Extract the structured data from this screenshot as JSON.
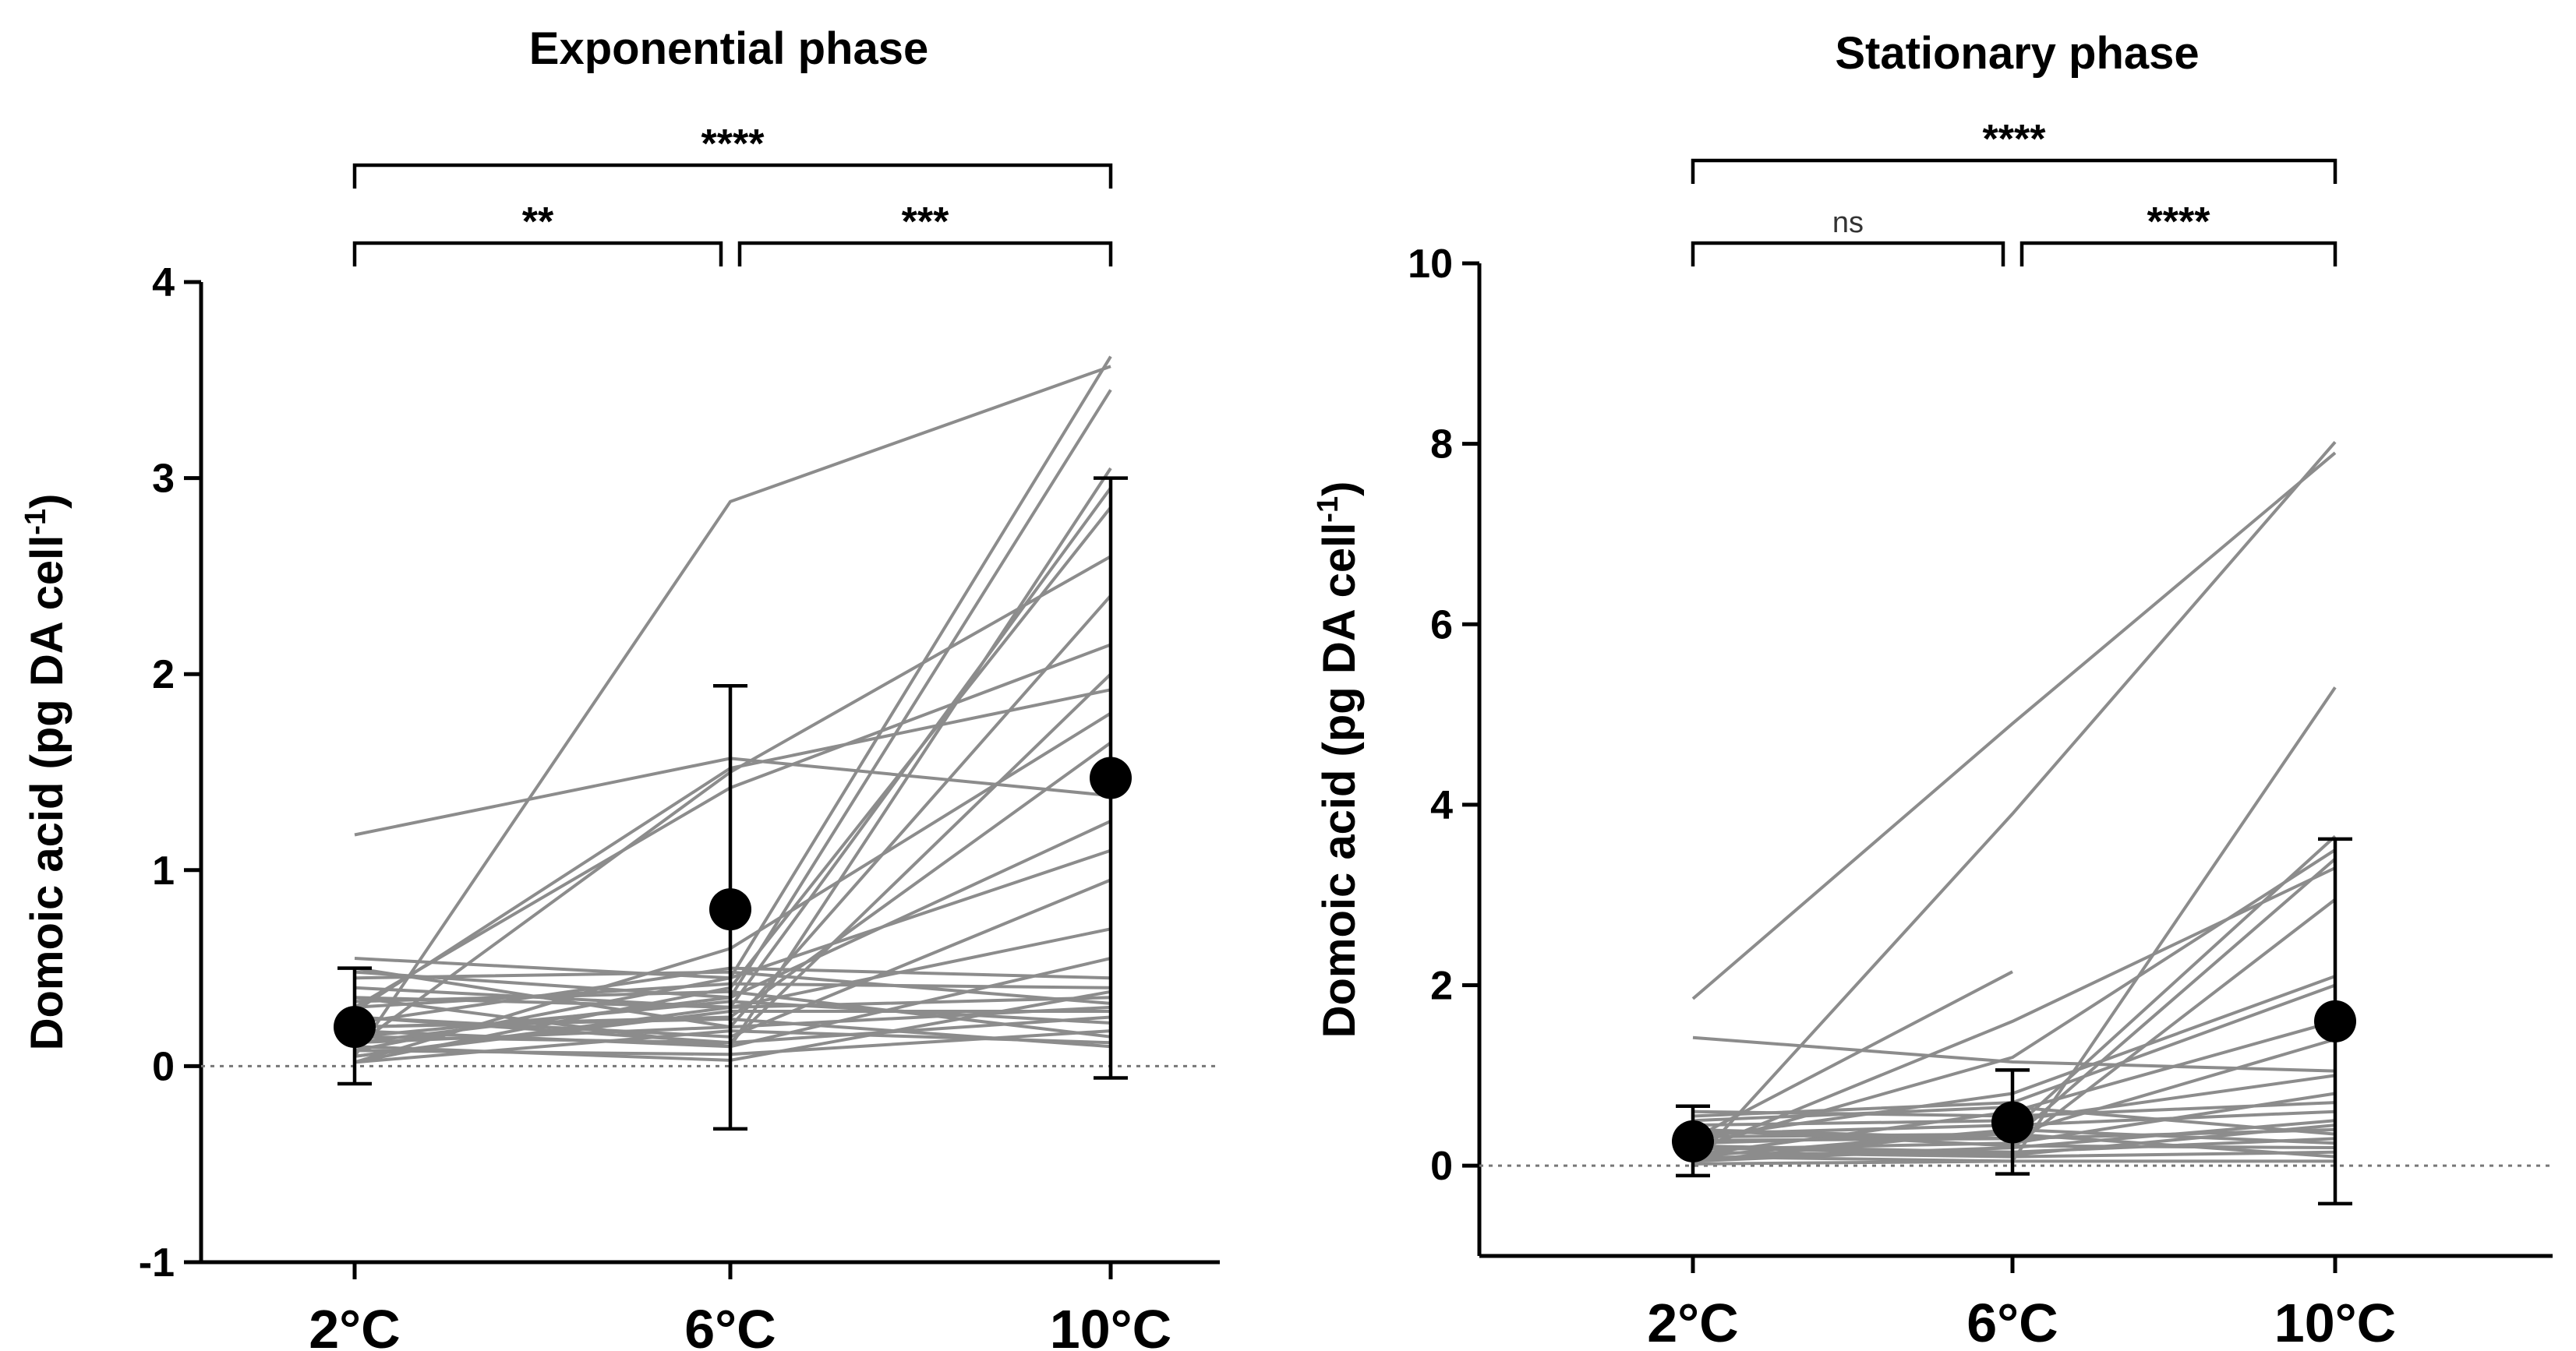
{
  "chart_data": [
    {
      "type": "line",
      "title": "Exponential phase",
      "xlabel": "",
      "ylabel": "Domoic acid (pg DA cell",
      "ylabel_sup": "-1",
      "ylabel_close": ")",
      "categories": [
        "2°C",
        "6°C",
        "10°C"
      ],
      "ylim": [
        -1,
        4
      ],
      "yticks": [
        -1,
        0,
        1,
        2,
        3,
        4
      ],
      "ytick_labels": [
        "-1",
        "0",
        "1",
        "2",
        "3",
        "4"
      ],
      "zero_line": true,
      "individual_series": [
        [
          1.18,
          1.57,
          1.38
        ],
        [
          0.05,
          2.88,
          3.57
        ],
        [
          0.55,
          0.45,
          3.62
        ],
        [
          0.48,
          0.35,
          3.45
        ],
        [
          0.35,
          0.1,
          3.05
        ],
        [
          0.05,
          0.3,
          2.95
        ],
        [
          0.1,
          1.5,
          2.6
        ],
        [
          0.02,
          0.4,
          2.85
        ],
        [
          0.5,
          0.2,
          2.4
        ],
        [
          0.3,
          1.42,
          2.15
        ],
        [
          0.15,
          0.12,
          2.0
        ],
        [
          0.28,
          1.52,
          1.92
        ],
        [
          0.02,
          0.6,
          1.8
        ],
        [
          0.2,
          0.25,
          1.65
        ],
        [
          0.12,
          0.35,
          1.25
        ],
        [
          0.08,
          0.45,
          1.1
        ],
        [
          0.25,
          0.15,
          0.95
        ],
        [
          0.35,
          0.3,
          0.7
        ],
        [
          0.18,
          0.1,
          0.55
        ],
        [
          0.22,
          0.5,
          0.45
        ],
        [
          0.3,
          0.42,
          0.4
        ],
        [
          0.4,
          0.3,
          0.35
        ],
        [
          0.12,
          0.2,
          0.3
        ],
        [
          0.05,
          0.28,
          0.28
        ],
        [
          0.25,
          0.12,
          0.25
        ],
        [
          0.15,
          0.33,
          0.22
        ],
        [
          0.08,
          0.06,
          0.18
        ],
        [
          0.33,
          0.38,
          0.15
        ],
        [
          0.02,
          0.18,
          0.12
        ],
        [
          0.2,
          0.24,
          0.1
        ],
        [
          0.1,
          0.03,
          0.38
        ],
        [
          0.45,
          0.48,
          0.32
        ]
      ],
      "means": [
        0.2,
        0.8,
        1.47
      ],
      "err_upper": [
        0.5,
        1.94,
        3.0
      ],
      "err_lower": [
        -0.09,
        -0.32,
        -0.06
      ],
      "brackets": [
        {
          "from": 0,
          "to": 2,
          "level": "top",
          "label": "****"
        },
        {
          "from": 0,
          "to": 1,
          "level": "low",
          "label": "**"
        },
        {
          "from": 1,
          "to": 2,
          "level": "low",
          "label": "***"
        }
      ]
    },
    {
      "type": "line",
      "title": "Stationary phase",
      "xlabel": "",
      "ylabel": "Domoic acid (pg DA cell",
      "ylabel_sup": "-1",
      "ylabel_close": ")",
      "categories": [
        "2°C",
        "6°C",
        "10°C"
      ],
      "ylim": [
        -1,
        10
      ],
      "yticks": [
        0,
        2,
        4,
        6,
        8,
        10
      ],
      "ytick_labels": [
        "0",
        "2",
        "4",
        "6",
        "8",
        "10"
      ],
      "zero_line": true,
      "individual_series": [
        [
          1.85,
          4.9,
          7.9
        ],
        [
          0.02,
          3.9,
          8.02
        ],
        [
          1.42,
          1.15,
          1.05
        ],
        [
          0.3,
          2.15,
          null
        ],
        [
          0.1,
          0.05,
          5.3
        ],
        [
          0.05,
          0.4,
          3.65
        ],
        [
          0.2,
          1.2,
          3.5
        ],
        [
          0.4,
          0.3,
          3.4
        ],
        [
          0.15,
          1.6,
          3.3
        ],
        [
          0.08,
          0.2,
          2.95
        ],
        [
          0.3,
          0.8,
          2.1
        ],
        [
          0.55,
          0.7,
          2.0
        ],
        [
          0.12,
          0.6,
          1.6
        ],
        [
          0.25,
          0.35,
          1.4
        ],
        [
          0.45,
          0.5,
          1.0
        ],
        [
          0.18,
          0.25,
          0.8
        ],
        [
          0.35,
          0.45,
          0.6
        ],
        [
          0.05,
          0.2,
          0.5
        ],
        [
          0.28,
          0.3,
          0.4
        ],
        [
          0.5,
          0.65,
          0.35
        ],
        [
          0.22,
          0.15,
          0.3
        ],
        [
          0.1,
          0.4,
          0.25
        ],
        [
          0.4,
          0.22,
          0.2
        ],
        [
          0.15,
          0.1,
          0.15
        ],
        [
          0.32,
          0.35,
          0.1
        ],
        [
          0.02,
          0.05,
          0.05
        ],
        [
          0.6,
          0.55,
          0.7
        ],
        [
          0.2,
          0.12,
          0.45
        ]
      ],
      "means": [
        0.27,
        0.48,
        1.6
      ],
      "err_upper": [
        0.66,
        1.06,
        3.62
      ],
      "err_lower": [
        -0.11,
        -0.09,
        -0.42
      ],
      "brackets": [
        {
          "from": 0,
          "to": 2,
          "level": "top",
          "label": "****"
        },
        {
          "from": 0,
          "to": 1,
          "level": "low",
          "label": "ns"
        },
        {
          "from": 1,
          "to": 2,
          "level": "low",
          "label": "****"
        }
      ]
    }
  ]
}
